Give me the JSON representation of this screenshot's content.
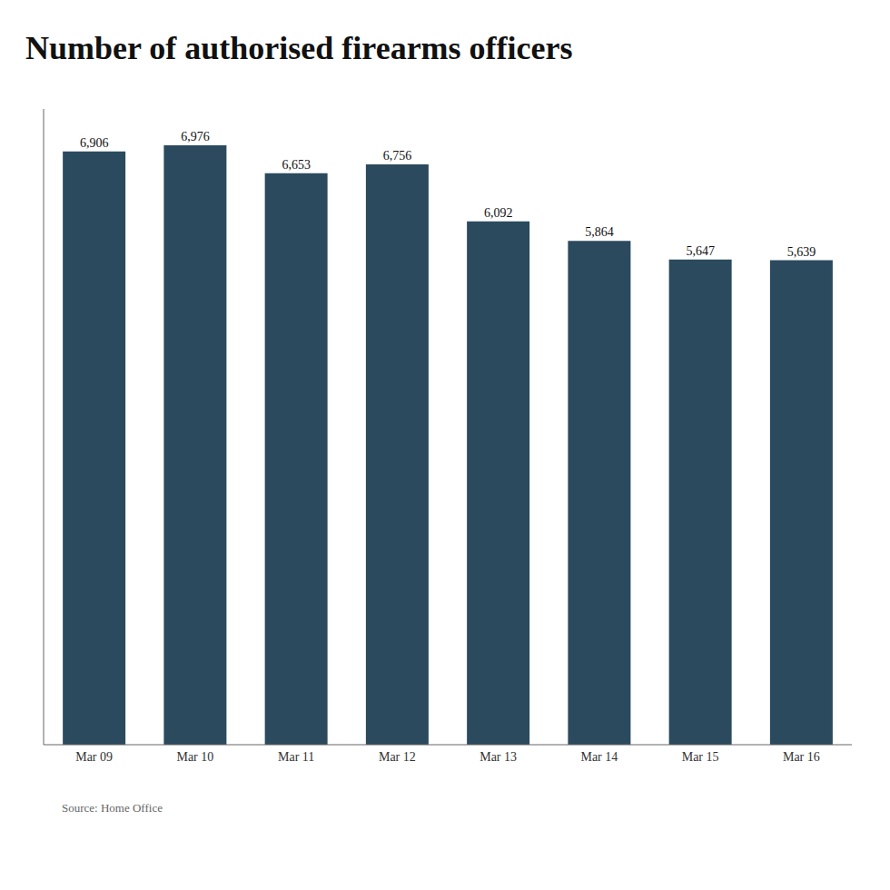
{
  "chart_data": {
    "type": "bar",
    "title": "Number of authorised firearms officers",
    "categories": [
      "Mar 09",
      "Mar 10",
      "Mar 11",
      "Mar 12",
      "Mar 13",
      "Mar 14",
      "Mar 15",
      "Mar 16"
    ],
    "values": [
      6906,
      6976,
      6653,
      6756,
      6092,
      5864,
      5647,
      5639
    ],
    "value_labels": [
      "6,906",
      "6,976",
      "6,653",
      "6,756",
      "6,092",
      "5,864",
      "5,647",
      "5,639"
    ],
    "data_labels": true,
    "color": "#2b4a5e",
    "ylim": [
      0,
      7400
    ],
    "tick_labels": "x",
    "grid": false,
    "annotations": [
      "Source: Home Office"
    ]
  }
}
